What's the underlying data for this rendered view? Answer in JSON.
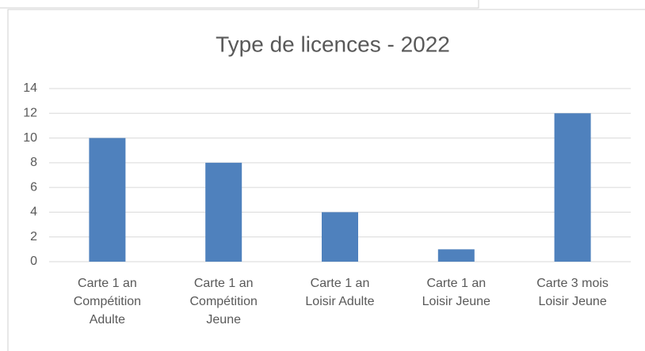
{
  "chart_data": {
    "type": "bar",
    "title": "Type de licences - 2022",
    "categories": [
      "Carte 1 an Compétition Adulte",
      "Carte 1 an Compétition Jeune",
      "Carte 1 an Loisir Adulte",
      "Carte 1 an Loisir Jeune",
      "Carte 3 mois Loisir Jeune"
    ],
    "values": [
      10,
      8,
      4,
      1,
      12
    ],
    "color": "#4f81bd",
    "ylim": [
      0,
      14
    ],
    "yticks": [
      0,
      2,
      4,
      6,
      8,
      10,
      12,
      14
    ],
    "grid": true
  }
}
